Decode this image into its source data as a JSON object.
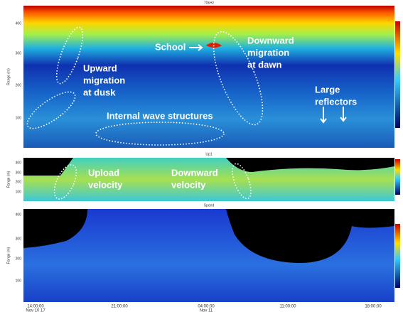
{
  "panels": [
    {
      "title": "70kHz",
      "y_label": "Range (m)",
      "y_ticks": [
        "400",
        "300",
        "200",
        "100"
      ],
      "annotations": [
        [
          "School"
        ],
        [
          "Downward",
          "migration",
          "at dawn"
        ],
        [
          "Upward",
          "migration",
          "at dusk"
        ],
        [
          "Internal wave structures"
        ],
        [
          "Large",
          "reflectors"
        ]
      ]
    },
    {
      "title": "Up1",
      "y_label": "Range (m)",
      "y_ticks": [
        "400",
        "300",
        "200",
        "100"
      ],
      "annotations": [
        [
          "Upload",
          "velocity"
        ],
        [
          "Downward",
          "velocity"
        ]
      ]
    },
    {
      "title": "Speed",
      "y_label": "Range (m)",
      "y_ticks": [
        "400",
        "300",
        "200",
        "100"
      ],
      "annotations": []
    }
  ],
  "x_ticks": [
    {
      "time": "14:00:00",
      "date": "Nov 10 17"
    },
    {
      "time": "21:00:00"
    },
    {
      "time": "04:00:00",
      "date": "Nov 11"
    },
    {
      "time": "11:00:00"
    },
    {
      "time": "18:00:00"
    }
  ]
}
